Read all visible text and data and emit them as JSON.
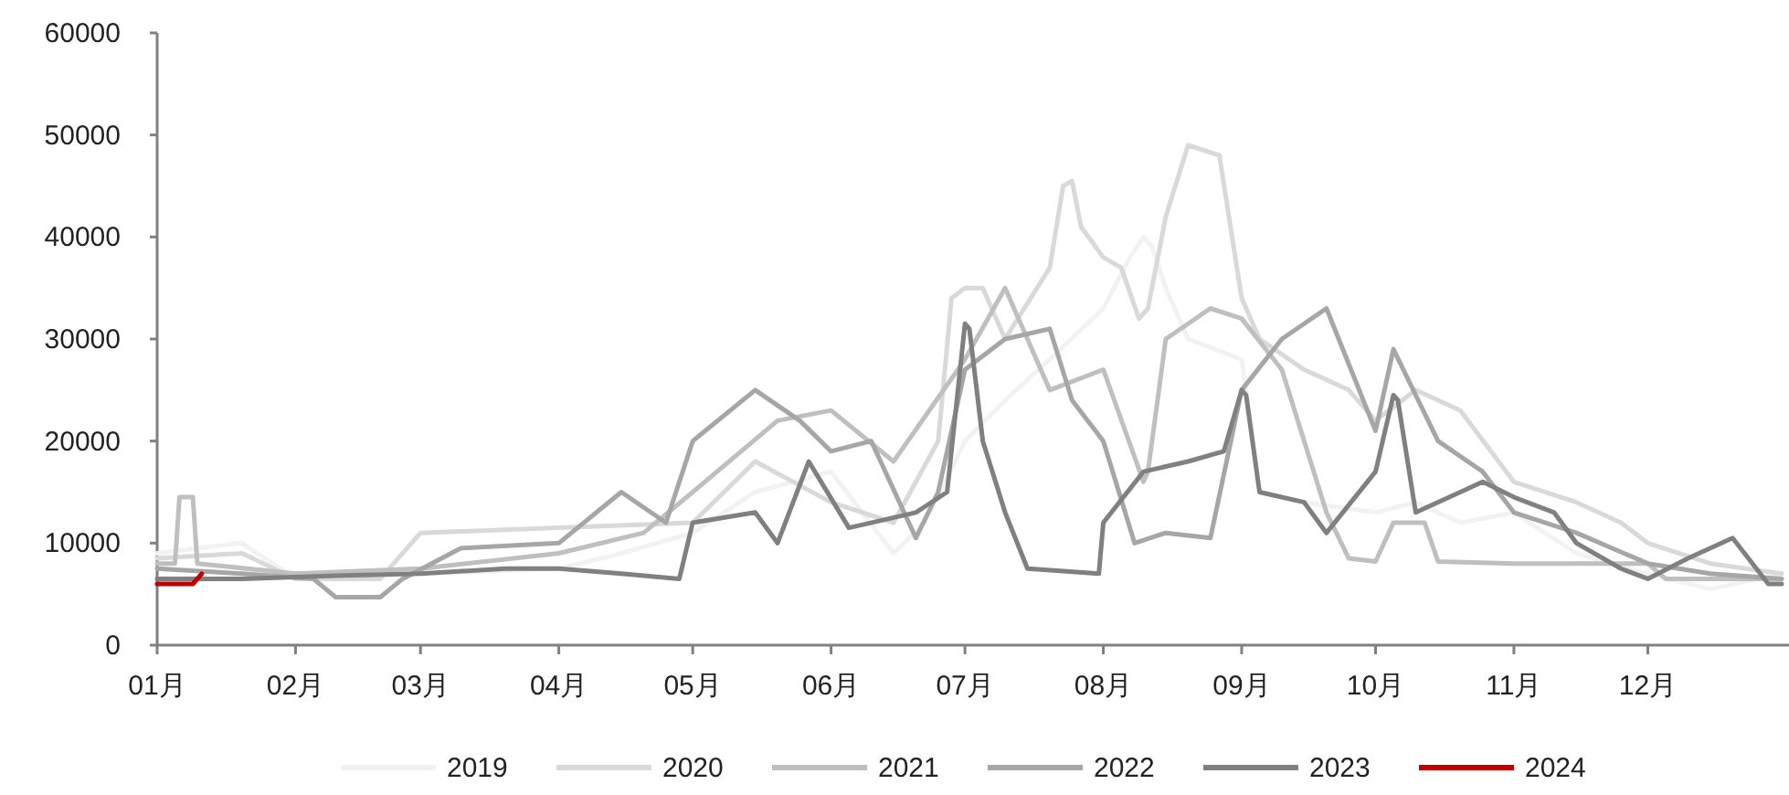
{
  "chart_data": {
    "type": "line",
    "legend": "bottom",
    "grid": false,
    "xlim": [
      "--01-01",
      "--12-31"
    ],
    "xticks": [
      {
        "value": "--01-01",
        "label": "01月"
      },
      {
        "value": "--02-01",
        "label": "02月"
      },
      {
        "value": "--03-01",
        "label": "03月"
      },
      {
        "value": "--04-01",
        "label": "04月"
      },
      {
        "value": "--05-01",
        "label": "05月"
      },
      {
        "value": "--06-01",
        "label": "06月"
      },
      {
        "value": "--07-01",
        "label": "07月"
      },
      {
        "value": "--08-01",
        "label": "08月"
      },
      {
        "value": "--09-01",
        "label": "09月"
      },
      {
        "value": "--10-01",
        "label": "10月"
      },
      {
        "value": "--11-01",
        "label": "11月"
      },
      {
        "value": "--12-01",
        "label": "12月"
      }
    ],
    "ylim": [
      0,
      60000
    ],
    "yticks": [
      0,
      10000,
      20000,
      30000,
      40000,
      50000,
      60000
    ],
    "series": [
      {
        "name": "2019",
        "color": "#f2f2f2",
        "x": [
          "--01-01",
          "--01-10",
          "--01-20",
          "--02-01",
          "--02-15",
          "--03-01",
          "--03-15",
          "--04-01",
          "--04-15",
          "--05-01",
          "--05-15",
          "--06-01",
          "--06-15",
          "--06-22",
          "--07-01",
          "--07-10",
          "--07-20",
          "--08-01",
          "--08-07",
          "--08-10",
          "--08-12",
          "--08-15",
          "--08-20",
          "--09-01",
          "--09-05",
          "--09-15",
          "--10-01",
          "--10-10",
          "--10-20",
          "--11-01",
          "--11-15",
          "--12-01",
          "--12-15",
          "--12-31"
        ],
        "values": [
          9000,
          9500,
          10000,
          6500,
          6800,
          7000,
          7200,
          7500,
          9000,
          11000,
          15000,
          17000,
          9000,
          12000,
          20000,
          24000,
          28000,
          33000,
          38000,
          40000,
          39000,
          35000,
          30000,
          28000,
          15000,
          14000,
          13000,
          14000,
          12000,
          13000,
          9000,
          7000,
          5500,
          7000
        ]
      },
      {
        "name": "2020",
        "color": "#d9d9d9",
        "x": [
          "--01-01",
          "--01-20",
          "--02-01",
          "--02-20",
          "--03-01",
          "--04-01",
          "--05-01",
          "--05-15",
          "--06-01",
          "--06-15",
          "--06-25",
          "--06-28",
          "--07-01",
          "--07-05",
          "--07-10",
          "--07-20",
          "--07-23",
          "--07-25",
          "--07-27",
          "--08-01",
          "--08-05",
          "--08-09",
          "--08-11",
          "--08-15",
          "--08-20",
          "--08-27",
          "--09-01",
          "--09-05",
          "--09-15",
          "--09-25",
          "--10-01",
          "--10-10",
          "--10-20",
          "--11-01",
          "--11-15",
          "--11-25",
          "--12-01",
          "--12-15",
          "--12-31"
        ],
        "values": [
          8500,
          9000,
          6500,
          6500,
          11000,
          11500,
          12000,
          18000,
          14000,
          12000,
          20000,
          34000,
          35000,
          35000,
          30000,
          37000,
          45000,
          45500,
          41000,
          38000,
          37000,
          32000,
          33000,
          42000,
          49000,
          48000,
          34000,
          30000,
          27000,
          25000,
          22000,
          25000,
          23000,
          16000,
          14000,
          12000,
          10000,
          8000,
          7000
        ]
      },
      {
        "name": "2021",
        "color": "#bfbfbf",
        "x": [
          "--01-01",
          "--01-05",
          "--01-06",
          "--01-09",
          "--01-10",
          "--02-01",
          "--03-01",
          "--04-01",
          "--04-20",
          "--05-01",
          "--05-20",
          "--06-01",
          "--06-15",
          "--07-01",
          "--07-10",
          "--07-20",
          "--08-01",
          "--08-10",
          "--08-11",
          "--08-15",
          "--08-25",
          "--09-01",
          "--09-10",
          "--09-20",
          "--09-25",
          "--10-01",
          "--10-05",
          "--10-12",
          "--10-15",
          "--11-01",
          "--12-01",
          "--12-05",
          "--12-31"
        ],
        "values": [
          8000,
          8000,
          14500,
          14500,
          8000,
          7000,
          7500,
          9000,
          11000,
          15000,
          22000,
          23000,
          18000,
          28000,
          35000,
          25000,
          27000,
          16000,
          17000,
          30000,
          33000,
          32000,
          27000,
          13000,
          8500,
          8200,
          12000,
          12000,
          8200,
          8000,
          8000,
          6500,
          6500
        ]
      },
      {
        "name": "2022",
        "color": "#a6a6a6",
        "x": [
          "--01-01",
          "--01-20",
          "--02-05",
          "--02-10",
          "--02-20",
          "--02-25",
          "--03-10",
          "--04-01",
          "--04-15",
          "--04-25",
          "--05-01",
          "--05-15",
          "--05-25",
          "--06-01",
          "--06-10",
          "--06-20",
          "--06-25",
          "--07-01",
          "--07-10",
          "--07-20",
          "--07-25",
          "--08-01",
          "--08-08",
          "--08-15",
          "--08-25",
          "--09-01",
          "--09-10",
          "--09-20",
          "--10-01",
          "--10-05",
          "--10-15",
          "--10-25",
          "--11-01",
          "--11-15",
          "--12-01",
          "--12-15",
          "--12-31"
        ],
        "values": [
          7500,
          7000,
          6500,
          4700,
          4700,
          6500,
          9500,
          10000,
          15000,
          12000,
          20000,
          25000,
          22000,
          19000,
          20000,
          10500,
          15000,
          27000,
          30000,
          31000,
          24000,
          20000,
          10000,
          11000,
          10500,
          25000,
          30000,
          33000,
          21000,
          29000,
          20000,
          17000,
          13000,
          11000,
          8000,
          7000,
          6500
        ]
      },
      {
        "name": "2023",
        "color": "#808080",
        "x": [
          "--01-01",
          "--01-20",
          "--02-10",
          "--03-01",
          "--03-20",
          "--04-01",
          "--04-15",
          "--04-28",
          "--05-01",
          "--05-15",
          "--05-20",
          "--05-27",
          "--06-05",
          "--06-20",
          "--06-27",
          "--07-01",
          "--07-02",
          "--07-05",
          "--07-10",
          "--07-15",
          "--07-31",
          "--08-01",
          "--08-10",
          "--08-20",
          "--08-28",
          "--09-01",
          "--09-02",
          "--09-05",
          "--09-15",
          "--09-20",
          "--10-01",
          "--10-05",
          "--10-06",
          "--10-10",
          "--10-20",
          "--10-25",
          "--11-01",
          "--11-10",
          "--11-15",
          "--11-25",
          "--12-01",
          "--12-10",
          "--12-20",
          "--12-28",
          "--12-31"
        ],
        "values": [
          6500,
          6500,
          6800,
          7000,
          7500,
          7500,
          7000,
          6500,
          12000,
          13000,
          10000,
          18000,
          11500,
          13000,
          15000,
          31500,
          31000,
          20000,
          13000,
          7500,
          7000,
          12000,
          17000,
          18000,
          19000,
          25000,
          24500,
          15000,
          14000,
          11000,
          17000,
          24500,
          24000,
          13000,
          15000,
          16000,
          14500,
          13000,
          10000,
          7500,
          6500,
          8500,
          10500,
          6000,
          6000
        ]
      },
      {
        "name": "2024",
        "color": "#c00000",
        "x": [
          "--01-01",
          "--01-09",
          "--01-11"
        ],
        "values": [
          6000,
          6000,
          7000
        ]
      }
    ]
  }
}
